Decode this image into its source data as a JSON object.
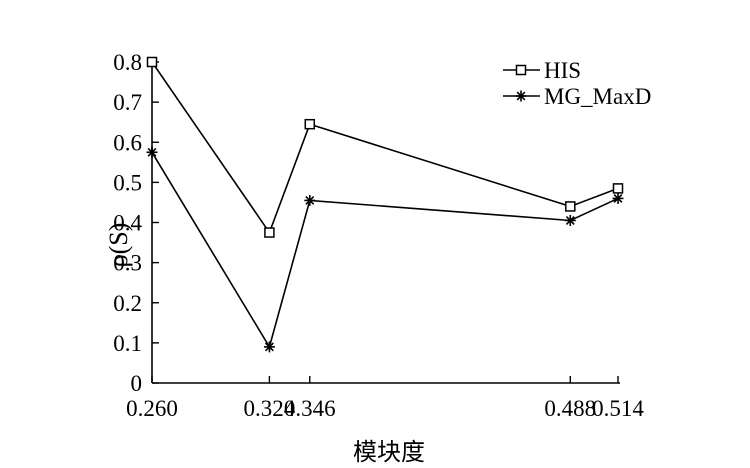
{
  "chart_data": {
    "type": "line",
    "x": [
      0.26,
      0.324,
      0.346,
      0.488,
      0.514
    ],
    "x_tick_labels": [
      "0.260",
      "0.324",
      "0.346",
      "0.488",
      "0.514"
    ],
    "xlabel": "模块度",
    "ylabel": "ρ(S)",
    "ylim": [
      0,
      0.8
    ],
    "y_tick_labels": [
      "0",
      "0.1",
      "0.2",
      "0.3",
      "0.4",
      "0.5",
      "0.6",
      "0.7",
      "0.8"
    ],
    "grid": false,
    "legend_position": "top-right",
    "series": [
      {
        "name": "HIS",
        "marker": "square",
        "values": [
          0.8,
          0.375,
          0.645,
          0.44,
          0.485
        ]
      },
      {
        "name": "MG_MaxD",
        "marker": "star",
        "values": [
          0.575,
          0.09,
          0.455,
          0.405,
          0.46
        ]
      }
    ]
  }
}
